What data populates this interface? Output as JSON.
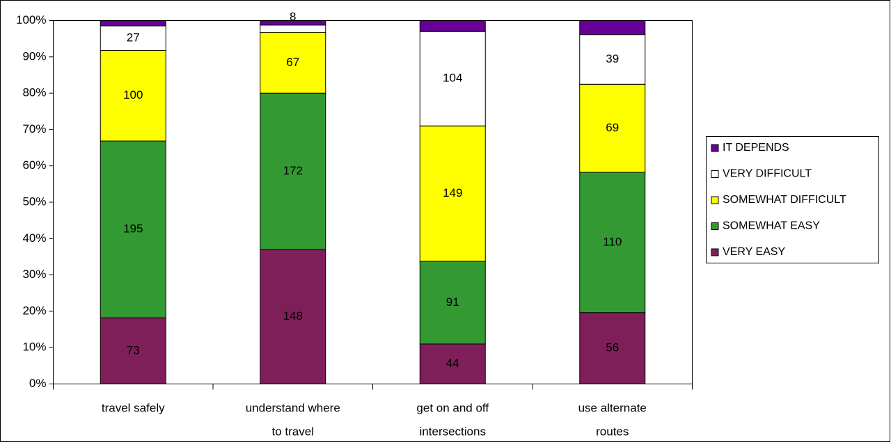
{
  "chart_data": {
    "type": "stacked_percent_bar",
    "categories": [
      "travel safely",
      "understand where to travel",
      "get on and off intersections",
      "use alternate routes"
    ],
    "series": [
      {
        "name": "VERY EASY",
        "color": "#7f1f5a",
        "values": [
          73,
          148,
          44,
          56
        ]
      },
      {
        "name": "SOMEWHAT EASY",
        "color": "#339933",
        "values": [
          195,
          172,
          91,
          110
        ]
      },
      {
        "name": "SOMEWHAT DIFFICULT",
        "color": "#ffff00",
        "values": [
          100,
          67,
          149,
          69
        ]
      },
      {
        "name": "VERY DIFFICULT",
        "color": "#ffffff",
        "values": [
          27,
          8,
          104,
          39
        ]
      },
      {
        "name": "IT DEPENDS",
        "color": "#660099",
        "values": [
          6,
          5,
          12,
          11
        ],
        "data_labels": false
      }
    ],
    "ylim": [
      0,
      100
    ],
    "yticks": [
      {
        "value": 0,
        "label": "0%"
      },
      {
        "value": 10,
        "label": "10%"
      },
      {
        "value": 20,
        "label": "20%"
      },
      {
        "value": 30,
        "label": "30%"
      },
      {
        "value": 40,
        "label": "40%"
      },
      {
        "value": 50,
        "label": "50%"
      },
      {
        "value": 60,
        "label": "60%"
      },
      {
        "value": 70,
        "label": "70%"
      },
      {
        "value": 80,
        "label": "80%"
      },
      {
        "value": 90,
        "label": "90%"
      },
      {
        "value": 100,
        "label": "100%"
      }
    ],
    "legend": "right"
  }
}
